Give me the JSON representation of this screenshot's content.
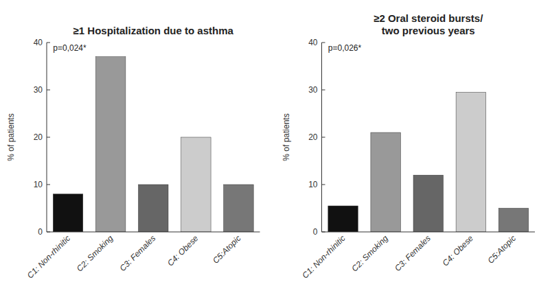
{
  "chart_data": [
    {
      "type": "bar",
      "title": "≥1 Hospitalization due to asthma",
      "categories": [
        "C1: Non-rhinitic",
        "C2: Smoking",
        "C3: Females",
        "C4: Obese",
        "C5:Atopic"
      ],
      "values": [
        8,
        37,
        10,
        20,
        10
      ],
      "colors": [
        "#111111",
        "#999999",
        "#666666",
        "#cccccc",
        "#777777"
      ],
      "ylabel": "% of patients",
      "annotations": [
        "p=0,024*"
      ],
      "ylim": [
        0,
        40
      ],
      "yticks": [
        0,
        10,
        20,
        30,
        40
      ],
      "grid": false
    },
    {
      "type": "bar",
      "title": "≥2 Oral steroid bursts/\ntwo previous years",
      "categories": [
        "C1: Non-rhinitic",
        "C2: Smoking",
        "C3: Females",
        "C4: Obese",
        "C5:Atopic"
      ],
      "values": [
        5.5,
        21,
        12,
        29.5,
        5
      ],
      "colors": [
        "#111111",
        "#999999",
        "#666666",
        "#cccccc",
        "#777777"
      ],
      "ylabel": "% of patients",
      "annotations": [
        "p=0,026*"
      ],
      "ylim": [
        0,
        40
      ],
      "yticks": [
        0,
        10,
        20,
        30,
        40
      ],
      "grid": false
    }
  ]
}
